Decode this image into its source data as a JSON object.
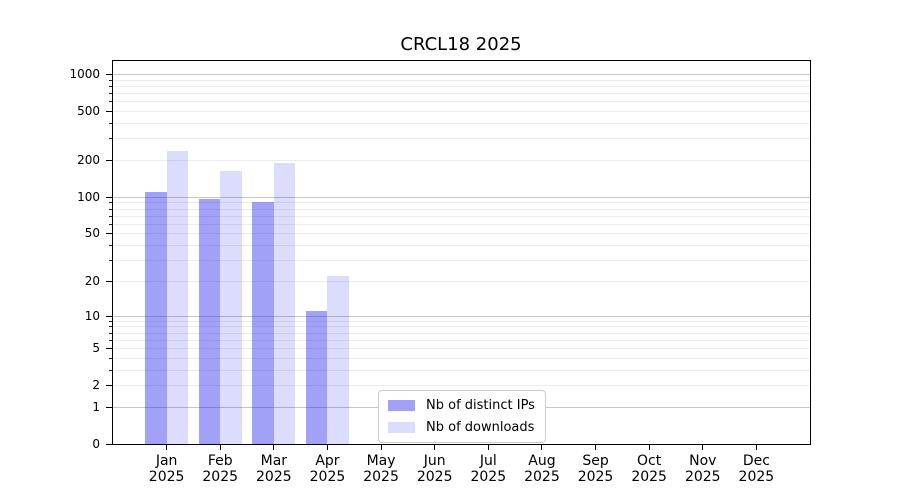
{
  "chart": {
    "title": "CRCL18 2025"
  },
  "chart_data": {
    "type": "bar",
    "title": "CRCL18 2025",
    "categories": [
      "Jan 2025",
      "Feb 2025",
      "Mar 2025",
      "Apr 2025",
      "May 2025",
      "Jun 2025",
      "Jul 2025",
      "Aug 2025",
      "Sep 2025",
      "Oct 2025",
      "Nov 2025",
      "Dec 2025"
    ],
    "series": [
      {
        "name": "Nb of distinct IPs",
        "fill": "rgba(20,20,235,0.40)",
        "values": [
          110,
          96,
          91,
          11,
          0,
          0,
          0,
          0,
          0,
          0,
          0,
          0
        ]
      },
      {
        "name": "Nb of downloads",
        "fill": "rgba(20,20,235,0.15)",
        "values": [
          238,
          163,
          191,
          22,
          0,
          0,
          0,
          0,
          0,
          0,
          0,
          0
        ]
      }
    ],
    "xlabel": "",
    "ylabel": "",
    "yscale": "log10(value+1)",
    "ylim": [
      0,
      1276
    ],
    "ytick_values": [
      0,
      1,
      2,
      5,
      10,
      20,
      50,
      100,
      200,
      500,
      1000
    ],
    "ytick_labels": [
      "0",
      "1",
      "2",
      "5",
      "10",
      "20",
      "50",
      "100",
      "200",
      "500",
      "1000"
    ],
    "major_grid_values": [
      1,
      10,
      100,
      1000
    ],
    "minor_grid_values": [
      2,
      3,
      4,
      5,
      6,
      7,
      8,
      9,
      20,
      30,
      40,
      50,
      60,
      70,
      80,
      90,
      200,
      300,
      400,
      500,
      600,
      700,
      800,
      900
    ],
    "grid": true,
    "legend_position": "lower center",
    "colors": {
      "background": "#ffffff",
      "axis": "#000000",
      "major_grid": "#c6c6c6",
      "minor_grid": "#ececec",
      "bar_ips_on_white": "#a2a2f6",
      "bar_downloads_on_white": "#dcdcfa"
    }
  }
}
